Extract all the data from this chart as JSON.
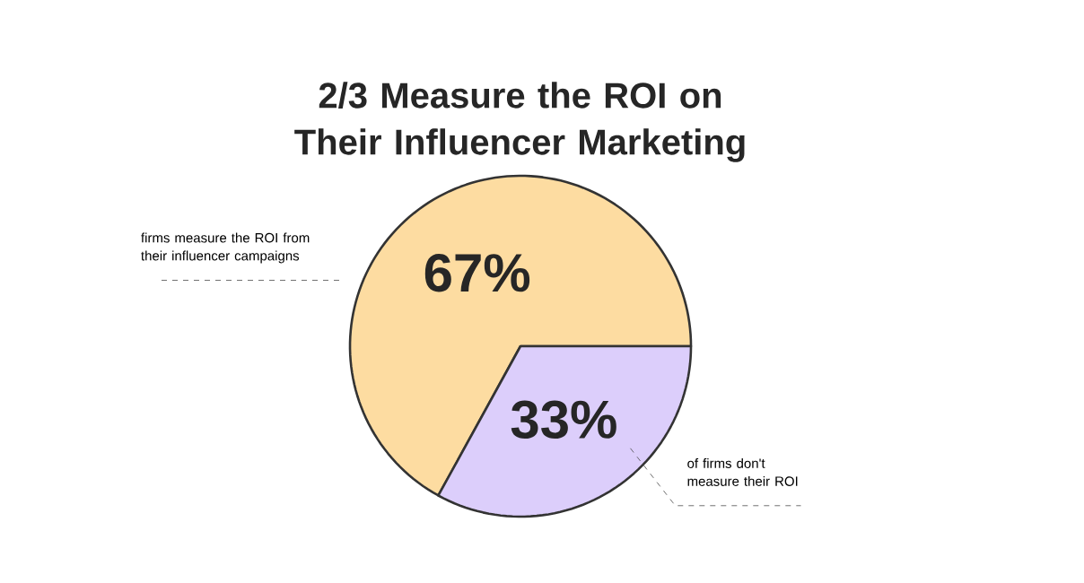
{
  "chart_data": {
    "type": "pie",
    "title": "2/3 Measure the ROI on Their Influencer Marketing",
    "categories": [
      "firms measure the ROI from their influencer campaigns",
      "of firms don't measure their ROI"
    ],
    "values": [
      67,
      33
    ],
    "colors": [
      "#fddca1",
      "#dccefb"
    ],
    "value_labels": [
      "67%",
      "33%"
    ]
  }
}
